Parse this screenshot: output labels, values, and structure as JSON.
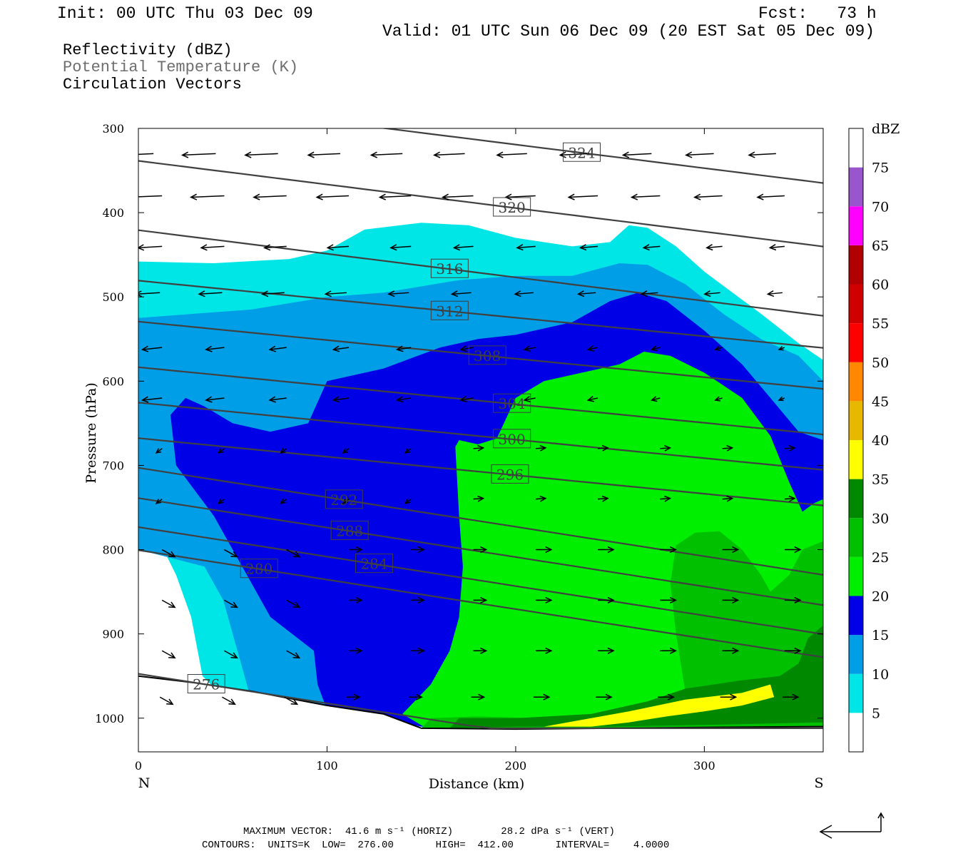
{
  "header": {
    "init": "Init: 00 UTC Thu 03 Dec 09",
    "fcst": "Fcst:   73 h",
    "valid": "Valid: 01 UTC Sun 06 Dec 09 (20 EST Sat 05 Dec 09)"
  },
  "legend": {
    "line1": "Reflectivity (dBZ)",
    "line2": "Potential Temperature (K)",
    "line3": "Circulation Vectors",
    "line2_color": "#6e6e6e"
  },
  "footer": {
    "max_vector": "MAXIMUM VECTOR:  41.6 m s⁻¹ (HORIZ)        28.2 dPa s⁻¹ (VERT)",
    "contours": "CONTOURS:  UNITS=K  LOW=  276.00       HIGH=  412.00       INTERVAL=    4.0000"
  },
  "chart_data": {
    "type": "heatmap",
    "title": "Reflectivity (dBZ) / Potential Temperature (K) / Circulation Vectors",
    "xlabel": "Distance (km)",
    "ylabel": "Pressure (hPa)",
    "xlim": [
      0,
      363
    ],
    "ylim": [
      1040,
      300
    ],
    "x_ticks": [
      0,
      100,
      200,
      300
    ],
    "y_ticks": [
      300,
      400,
      500,
      600,
      700,
      800,
      900,
      1000
    ],
    "x_end_labels": {
      "left": "N",
      "right": "S"
    },
    "grid": false,
    "colorbar": {
      "title": "dBZ",
      "levels": [
        5,
        10,
        15,
        20,
        25,
        30,
        35,
        40,
        45,
        50,
        55,
        60,
        65,
        70,
        75
      ],
      "colors": [
        "#ffffff",
        "#00e6e6",
        "#009ee6",
        "#0000e6",
        "#00ee00",
        "#00c000",
        "#008800",
        "#ffff00",
        "#e6b800",
        "#ff8800",
        "#ff0000",
        "#d00000",
        "#b00000",
        "#ff00ff",
        "#9955cc",
        "#ffffff"
      ]
    },
    "reflectivity_regions": [
      {
        "dbz_min": 5,
        "color": "#00e6e6",
        "boundary": [
          [
            0,
            458
          ],
          [
            40,
            460
          ],
          [
            80,
            455
          ],
          [
            100,
            445
          ],
          [
            120,
            420
          ],
          [
            150,
            412
          ],
          [
            175,
            415
          ],
          [
            200,
            430
          ],
          [
            230,
            440
          ],
          [
            250,
            435
          ],
          [
            260,
            415
          ],
          [
            270,
            418
          ],
          [
            285,
            440
          ],
          [
            300,
            470
          ],
          [
            330,
            520
          ],
          [
            350,
            555
          ],
          [
            363,
            575
          ],
          [
            363,
            1010
          ],
          [
            250,
            1010
          ],
          [
            150,
            1010
          ],
          [
            90,
            985
          ],
          [
            45,
            975
          ],
          [
            34,
            950
          ],
          [
            28,
            880
          ],
          [
            20,
            830
          ],
          [
            0,
            740
          ]
        ]
      },
      {
        "dbz_min": 10,
        "color": "#009ee6",
        "boundary": [
          [
            0,
            525
          ],
          [
            30,
            520
          ],
          [
            60,
            515
          ],
          [
            100,
            500
          ],
          [
            130,
            495
          ],
          [
            170,
            480
          ],
          [
            200,
            475
          ],
          [
            230,
            475
          ],
          [
            255,
            460
          ],
          [
            270,
            462
          ],
          [
            290,
            485
          ],
          [
            310,
            520
          ],
          [
            330,
            550
          ],
          [
            350,
            570
          ],
          [
            363,
            600
          ],
          [
            363,
            1010
          ],
          [
            150,
            1010
          ],
          [
            100,
            1005
          ],
          [
            95,
            990
          ],
          [
            60,
            980
          ],
          [
            45,
            860
          ],
          [
            35,
            820
          ],
          [
            0,
            800
          ]
        ]
      },
      {
        "dbz_min": 15,
        "color": "#0000e6",
        "boundary": [
          [
            17,
            640
          ],
          [
            25,
            620
          ],
          [
            35,
            630
          ],
          [
            50,
            650
          ],
          [
            70,
            660
          ],
          [
            90,
            650
          ],
          [
            100,
            600
          ],
          [
            130,
            585
          ],
          [
            160,
            560
          ],
          [
            180,
            550
          ],
          [
            200,
            545
          ],
          [
            230,
            530
          ],
          [
            250,
            505
          ],
          [
            265,
            495
          ],
          [
            280,
            505
          ],
          [
            300,
            540
          ],
          [
            320,
            580
          ],
          [
            335,
            620
          ],
          [
            350,
            660
          ],
          [
            363,
            670
          ],
          [
            363,
            1010
          ],
          [
            150,
            1010
          ],
          [
            130,
            1000
          ],
          [
            100,
            990
          ],
          [
            95,
            960
          ],
          [
            93,
            920
          ],
          [
            70,
            880
          ],
          [
            60,
            840
          ],
          [
            40,
            760
          ],
          [
            20,
            700
          ]
        ]
      },
      {
        "dbz_min": 20,
        "color": "#00ee00",
        "boundary": [
          [
            168,
            678
          ],
          [
            170,
            670
          ],
          [
            180,
            675
          ],
          [
            190,
            668
          ],
          [
            200,
            620
          ],
          [
            215,
            600
          ],
          [
            235,
            590
          ],
          [
            255,
            580
          ],
          [
            268,
            565
          ],
          [
            282,
            570
          ],
          [
            300,
            590
          ],
          [
            320,
            620
          ],
          [
            335,
            665
          ],
          [
            345,
            720
          ],
          [
            352,
            755
          ],
          [
            358,
            745
          ],
          [
            363,
            740
          ],
          [
            363,
            1010
          ],
          [
            250,
            1010
          ],
          [
            220,
            1012
          ],
          [
            155,
            1015
          ],
          [
            140,
            995
          ],
          [
            155,
            960
          ],
          [
            165,
            920
          ],
          [
            170,
            880
          ],
          [
            172,
            820
          ],
          [
            170,
            760
          ]
        ]
      },
      {
        "dbz_min": 25,
        "color": "#00c000",
        "boundary": [
          [
            285,
            795
          ],
          [
            295,
            780
          ],
          [
            308,
            778
          ],
          [
            320,
            800
          ],
          [
            330,
            830
          ],
          [
            335,
            850
          ],
          [
            345,
            830
          ],
          [
            352,
            800
          ],
          [
            363,
            790
          ],
          [
            363,
            1010
          ],
          [
            220,
            1012
          ],
          [
            150,
            1012
          ],
          [
            155,
            1000
          ],
          [
            180,
            998
          ],
          [
            210,
            1000
          ],
          [
            240,
            995
          ],
          [
            270,
            985
          ],
          [
            290,
            970
          ],
          [
            285,
            900
          ],
          [
            282,
            840
          ]
        ]
      },
      {
        "dbz_min": 30,
        "color": "#008800",
        "boundary": [
          [
            270,
            980
          ],
          [
            290,
            965
          ],
          [
            320,
            955
          ],
          [
            340,
            950
          ],
          [
            350,
            935
          ],
          [
            355,
            905
          ],
          [
            363,
            890
          ],
          [
            363,
            1005
          ],
          [
            300,
            1008
          ],
          [
            250,
            1010
          ],
          [
            200,
            1010
          ],
          [
            165,
            1012
          ],
          [
            170,
            1000
          ],
          [
            200,
            1000
          ],
          [
            240,
            995
          ]
        ]
      },
      {
        "dbz_min": 35,
        "color": "#ffff00",
        "boundary": [
          [
            215,
            1010
          ],
          [
            240,
            1000
          ],
          [
            260,
            992
          ],
          [
            275,
            985
          ],
          [
            290,
            978
          ],
          [
            320,
            970
          ],
          [
            335,
            960
          ],
          [
            337,
            975
          ],
          [
            320,
            985
          ],
          [
            300,
            992
          ],
          [
            280,
            998
          ],
          [
            260,
            1005
          ],
          [
            240,
            1010
          ]
        ]
      }
    ],
    "theta_contours": [
      {
        "value": 276,
        "label_at": [
          36,
          960
        ]
      },
      {
        "value": 280,
        "label_at": [
          64,
          823
        ]
      },
      {
        "value": 284,
        "label_at": [
          125,
          817
        ]
      },
      {
        "value": 288,
        "label_at": [
          112,
          778
        ]
      },
      {
        "value": 292,
        "label_at": [
          109,
          741
        ]
      },
      {
        "value": 296,
        "label_at": [
          197,
          711
        ]
      },
      {
        "value": 300,
        "label_at": [
          198,
          669
        ]
      },
      {
        "value": 304,
        "label_at": [
          198,
          627
        ]
      },
      {
        "value": 308,
        "label_at": [
          185,
          570
        ]
      },
      {
        "value": 312,
        "label_at": [
          165,
          517
        ]
      },
      {
        "value": 316,
        "label_at": [
          165,
          467
        ]
      },
      {
        "value": 320,
        "label_at": [
          198,
          394
        ]
      },
      {
        "value": 324,
        "label_at": [
          235,
          329
        ]
      }
    ],
    "vector_scale": {
      "horiz_max": "41.6 m s⁻¹",
      "vert_max": "28.2 dPa s⁻¹"
    }
  }
}
